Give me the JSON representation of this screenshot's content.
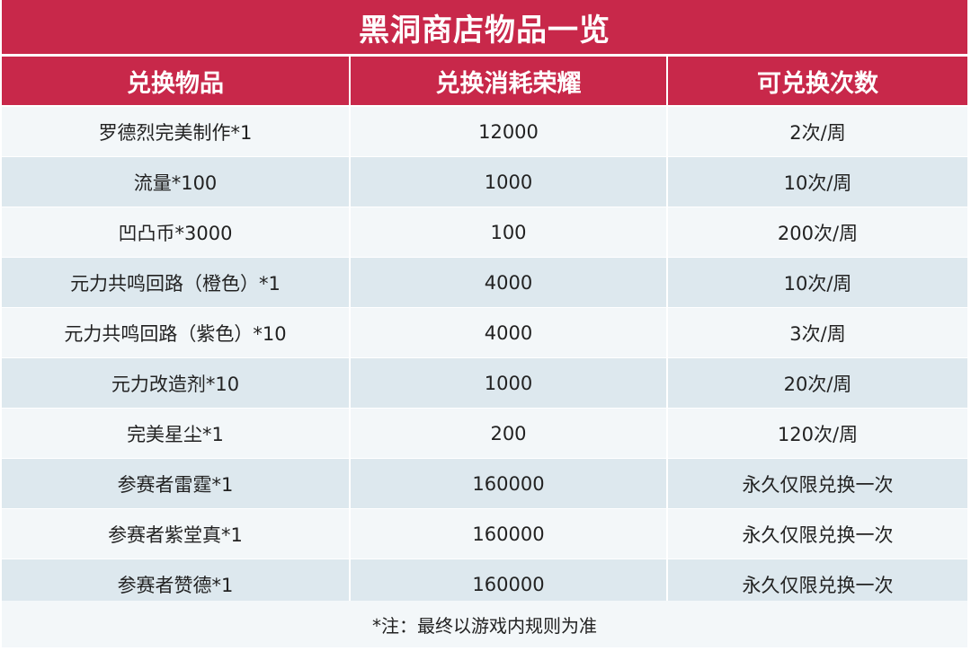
{
  "title": "黑洞商店物品一览",
  "columns": [
    "兑换物品",
    "兑换消耗荣耀",
    "可兑换次数"
  ],
  "rows": [
    {
      "item": "罗德烈完美制作*1",
      "cost": "12000",
      "limit": "2次/周"
    },
    {
      "item": "流量*100",
      "cost": "1000",
      "limit": "10次/周"
    },
    {
      "item": "凹凸币*3000",
      "cost": "100",
      "limit": "200次/周"
    },
    {
      "item": "元力共鸣回路（橙色）*1",
      "cost": "4000",
      "limit": "10次/周"
    },
    {
      "item": "元力共鸣回路（紫色）*10",
      "cost": "4000",
      "limit": "3次/周"
    },
    {
      "item": "元力改造剂*10",
      "cost": "1000",
      "limit": "20次/周"
    },
    {
      "item": "完美星尘*1",
      "cost": "200",
      "limit": "120次/周"
    },
    {
      "item": "参赛者雷霆*1",
      "cost": "160000",
      "limit": "永久仅限兑换一次"
    },
    {
      "item": "参赛者紫堂真*1",
      "cost": "160000",
      "limit": "永久仅限兑换一次"
    },
    {
      "item": "参赛者赞德*1",
      "cost": "160000",
      "limit": "永久仅限兑换一次"
    }
  ],
  "note": "*注：最终以游戏内规则为准",
  "colors": {
    "header": "#c8284a",
    "row_light": "#f3f7f9",
    "row_dark": "#dde8ee"
  }
}
